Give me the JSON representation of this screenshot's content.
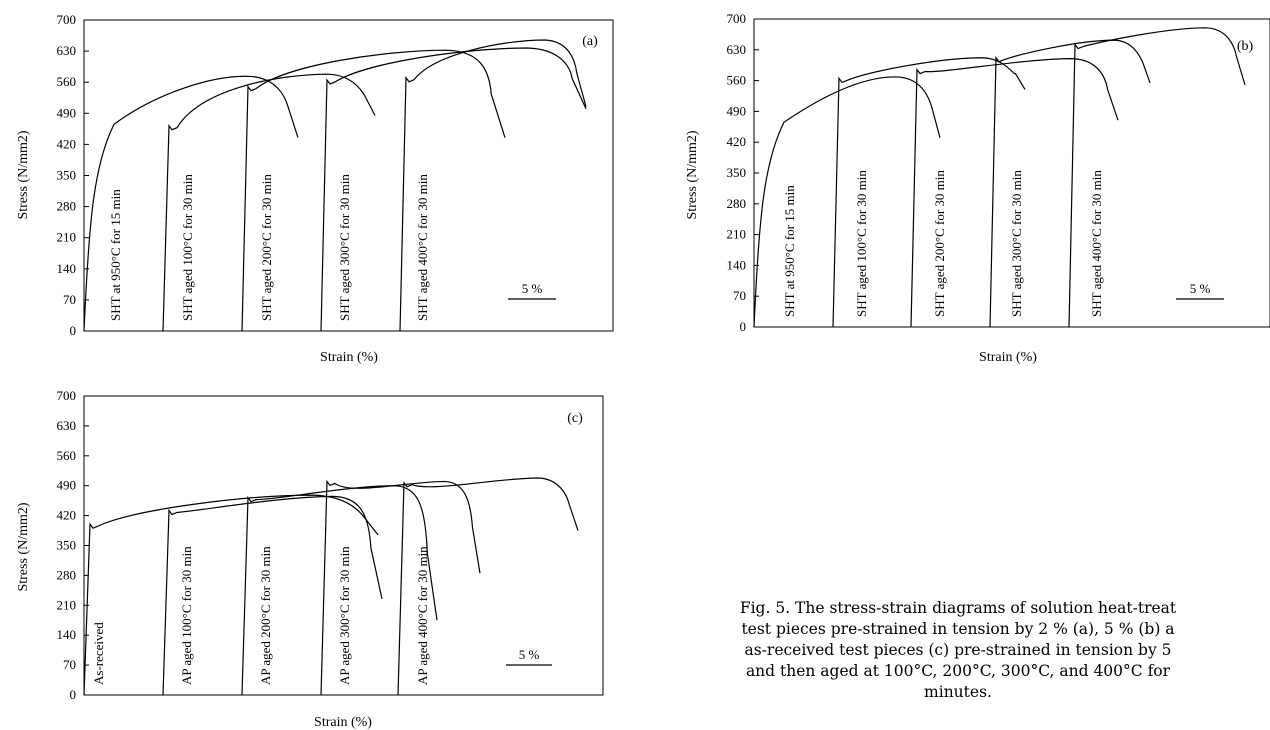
{
  "chart_data": [
    {
      "panel": "(a)",
      "type": "line",
      "xlabel": "Strain (%)",
      "ylabel": "Stress (N/mm2)",
      "ylim": [
        0,
        700
      ],
      "yticks": [
        0,
        70,
        140,
        210,
        280,
        350,
        420,
        490,
        560,
        630,
        700
      ],
      "scale_bar_label": "5 %",
      "series": [
        {
          "label": "SHT at 950°C for 15 min",
          "elastic_to": 420,
          "peak": 573,
          "fracture": 435
        },
        {
          "label": "SHT aged 100°C for 30 min",
          "elastic_to": 462,
          "peak": 578,
          "fracture": 485
        },
        {
          "label": "SHT aged 200°C for 30 min",
          "elastic_to": 550,
          "peak": 632,
          "fracture": 435
        },
        {
          "label": "SHT aged 300°C for 30 min",
          "elastic_to": 565,
          "peak": 637,
          "fracture": 500
        },
        {
          "label": "SHT aged 400°C for 30 min",
          "elastic_to": 570,
          "peak": 655,
          "fracture": 505
        }
      ]
    },
    {
      "panel": "(b)",
      "type": "line",
      "xlabel": "Strain (%)",
      "ylabel": "Stress (N/mm2)",
      "ylim": [
        0,
        700
      ],
      "yticks": [
        0,
        70,
        140,
        210,
        280,
        350,
        420,
        490,
        560,
        630,
        700
      ],
      "scale_bar_label": "5 %",
      "series": [
        {
          "label": "SHT at 950°C for 15 min",
          "elastic_to": 420,
          "peak": 568,
          "fracture": 430
        },
        {
          "label": "SHT aged 100°C for 30 min",
          "elastic_to": 565,
          "peak": 612,
          "fracture": 540
        },
        {
          "label": "SHT aged 200°C for 30 min",
          "elastic_to": 585,
          "peak": 610,
          "fracture": 470
        },
        {
          "label": "SHT aged 300°C for 30 min",
          "elastic_to": 612,
          "peak": 652,
          "fracture": 555
        },
        {
          "label": "SHT aged 400°C for 30 min",
          "elastic_to": 642,
          "peak": 680,
          "fracture": 550
        }
      ]
    },
    {
      "panel": "(c)",
      "type": "line",
      "xlabel": "Strain (%)",
      "ylabel": "Stress (N/mm2)",
      "ylim": [
        0,
        700
      ],
      "yticks": [
        0,
        70,
        140,
        210,
        280,
        350,
        420,
        490,
        560,
        630,
        700
      ],
      "scale_bar_label": "5 %",
      "series": [
        {
          "label": "As-received",
          "elastic_to": 400,
          "peak": 468,
          "fracture": 375
        },
        {
          "label": "AP aged 100°C for 30 min",
          "elastic_to": 432,
          "peak": 465,
          "fracture": 225
        },
        {
          "label": "AP aged 200°C for 30 min",
          "elastic_to": 462,
          "peak": 490,
          "fracture": 175
        },
        {
          "label": "AP aged 300°C for 30 min",
          "elastic_to": 500,
          "peak": 500,
          "fracture": 285
        },
        {
          "label": "AP aged 400°C for 30 min",
          "elastic_to": 497,
          "peak": 508,
          "fracture": 385
        }
      ]
    }
  ],
  "caption": {
    "line1": "Fig. 5. The stress-strain diagrams of solution heat-treat",
    "line2": "test pieces pre-strained in tension by 2 % (a), 5 % (b) a",
    "line3": "as-received test pieces (c) pre-strained in tension by 5",
    "line4": "and then aged at 100°C, 200°C, 300°C, and 400°C for",
    "line5": "minutes."
  }
}
